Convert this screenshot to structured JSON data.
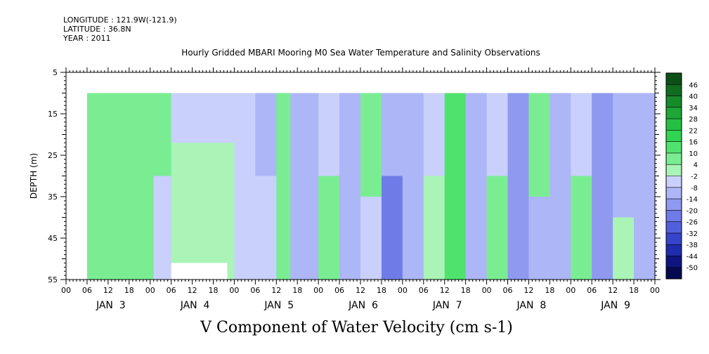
{
  "meta": {
    "longitude": "LONGITUDE : 121.9W(-121.9)",
    "latitude": "LATITUDE : 36.8N",
    "year": "YEAR : 2011"
  },
  "chart_data": {
    "type": "heatmap",
    "title": "Hourly Gridded MBARI Mooring M0 Sea Water Temperature and Salinity Observations",
    "xlabel": "V Component of Water Velocity (cm s-1)",
    "ylabel": "DEPTH (m)",
    "y_ticks": [
      5,
      15,
      25,
      35,
      45,
      55
    ],
    "ylim": [
      5,
      55
    ],
    "y_inverted": true,
    "x_hour_ticks": [
      "00",
      "06",
      "12",
      "18",
      "00",
      "06",
      "12",
      "18",
      "00",
      "06",
      "12",
      "18",
      "00",
      "06",
      "12",
      "18",
      "00",
      "06",
      "12",
      "18",
      "00",
      "06",
      "12",
      "18",
      "00",
      "06",
      "12",
      "18",
      "00"
    ],
    "x_day_labels": [
      "JAN  3",
      "JAN  4",
      "JAN  5",
      "JAN  6",
      "JAN  7",
      "JAN  8",
      "JAN  9"
    ],
    "xlim_hours": [
      0,
      168
    ],
    "data_depth_range": [
      10,
      55
    ],
    "data_start_hour": 6,
    "colorbar": {
      "levels": [
        "46",
        "40",
        "34",
        "28",
        "22",
        "16",
        "10",
        "4",
        "-2",
        "-8",
        "-14",
        "-20",
        "-26",
        "-32",
        "-38",
        "-44",
        "-50"
      ],
      "colors": [
        "#0c4f17",
        "#116b20",
        "#178a2a",
        "#1ea636",
        "#25c043",
        "#2fd553",
        "#4fe36e",
        "#7aed93",
        "#a9f4b6",
        "#c9d0fb",
        "#adb6f6",
        "#8e99ef",
        "#6f7ce7",
        "#525fdd",
        "#3644cc",
        "#1f2cad",
        "#0f1580",
        "#050a50"
      ]
    },
    "columns": [
      {
        "t0": 6,
        "t1": 13,
        "pattern": [
          [
            10,
            55,
            9
          ]
        ]
      },
      {
        "t0": 13,
        "t1": 18,
        "pattern": [
          [
            10,
            25,
            8
          ],
          [
            25,
            55,
            7
          ]
        ]
      },
      {
        "t0": 18,
        "t1": 25,
        "pattern": [
          [
            10,
            55,
            7
          ]
        ]
      },
      {
        "t0": 25,
        "t1": 30,
        "pattern": [
          [
            10,
            20,
            5
          ],
          [
            20,
            30,
            8
          ],
          [
            30,
            55,
            -8
          ]
        ]
      },
      {
        "t0": 30,
        "t1": 48,
        "pattern": [
          [
            10,
            22,
            -6
          ],
          [
            22,
            55,
            3
          ]
        ]
      },
      {
        "t0": 48,
        "t1": 54,
        "pattern": [
          [
            10,
            55,
            -4
          ]
        ]
      },
      {
        "t0": 54,
        "t1": 60,
        "pattern": [
          [
            10,
            30,
            -14
          ],
          [
            30,
            55,
            -8
          ]
        ]
      },
      {
        "t0": 60,
        "t1": 64,
        "pattern": [
          [
            10,
            55,
            8
          ]
        ]
      },
      {
        "t0": 64,
        "t1": 72,
        "pattern": [
          [
            10,
            55,
            -10
          ]
        ]
      },
      {
        "t0": 72,
        "t1": 78,
        "pattern": [
          [
            10,
            30,
            -8
          ],
          [
            30,
            55,
            4
          ]
        ]
      },
      {
        "t0": 78,
        "t1": 84,
        "pattern": [
          [
            10,
            55,
            -14
          ]
        ]
      },
      {
        "t0": 84,
        "t1": 90,
        "pattern": [
          [
            10,
            35,
            8
          ],
          [
            35,
            55,
            -6
          ]
        ]
      },
      {
        "t0": 90,
        "t1": 96,
        "pattern": [
          [
            10,
            30,
            -10
          ],
          [
            30,
            55,
            -22
          ]
        ]
      },
      {
        "t0": 96,
        "t1": 102,
        "pattern": [
          [
            10,
            55,
            -12
          ]
        ]
      },
      {
        "t0": 102,
        "t1": 108,
        "pattern": [
          [
            10,
            30,
            -8
          ],
          [
            30,
            55,
            2
          ]
        ]
      },
      {
        "t0": 108,
        "t1": 114,
        "pattern": [
          [
            10,
            55,
            14
          ]
        ]
      },
      {
        "t0": 114,
        "t1": 120,
        "pattern": [
          [
            10,
            55,
            -12
          ]
        ]
      },
      {
        "t0": 120,
        "t1": 126,
        "pattern": [
          [
            10,
            30,
            -6
          ],
          [
            30,
            55,
            4
          ]
        ]
      },
      {
        "t0": 126,
        "t1": 132,
        "pattern": [
          [
            10,
            55,
            -18
          ]
        ]
      },
      {
        "t0": 132,
        "t1": 138,
        "pattern": [
          [
            10,
            35,
            8
          ],
          [
            35,
            55,
            -10
          ]
        ]
      },
      {
        "t0": 138,
        "t1": 144,
        "pattern": [
          [
            10,
            55,
            -14
          ]
        ]
      },
      {
        "t0": 144,
        "t1": 150,
        "pattern": [
          [
            10,
            30,
            -8
          ],
          [
            30,
            55,
            6
          ]
        ]
      },
      {
        "t0": 150,
        "t1": 156,
        "pattern": [
          [
            10,
            55,
            -20
          ]
        ]
      },
      {
        "t0": 156,
        "t1": 162,
        "pattern": [
          [
            10,
            40,
            -12
          ],
          [
            40,
            55,
            3
          ]
        ]
      },
      {
        "t0": 162,
        "t1": 168,
        "pattern": [
          [
            10,
            55,
            -14
          ]
        ]
      }
    ],
    "gaps": [
      {
        "t0": 30,
        "t1": 46,
        "d0": 51,
        "d1": 55
      }
    ]
  }
}
